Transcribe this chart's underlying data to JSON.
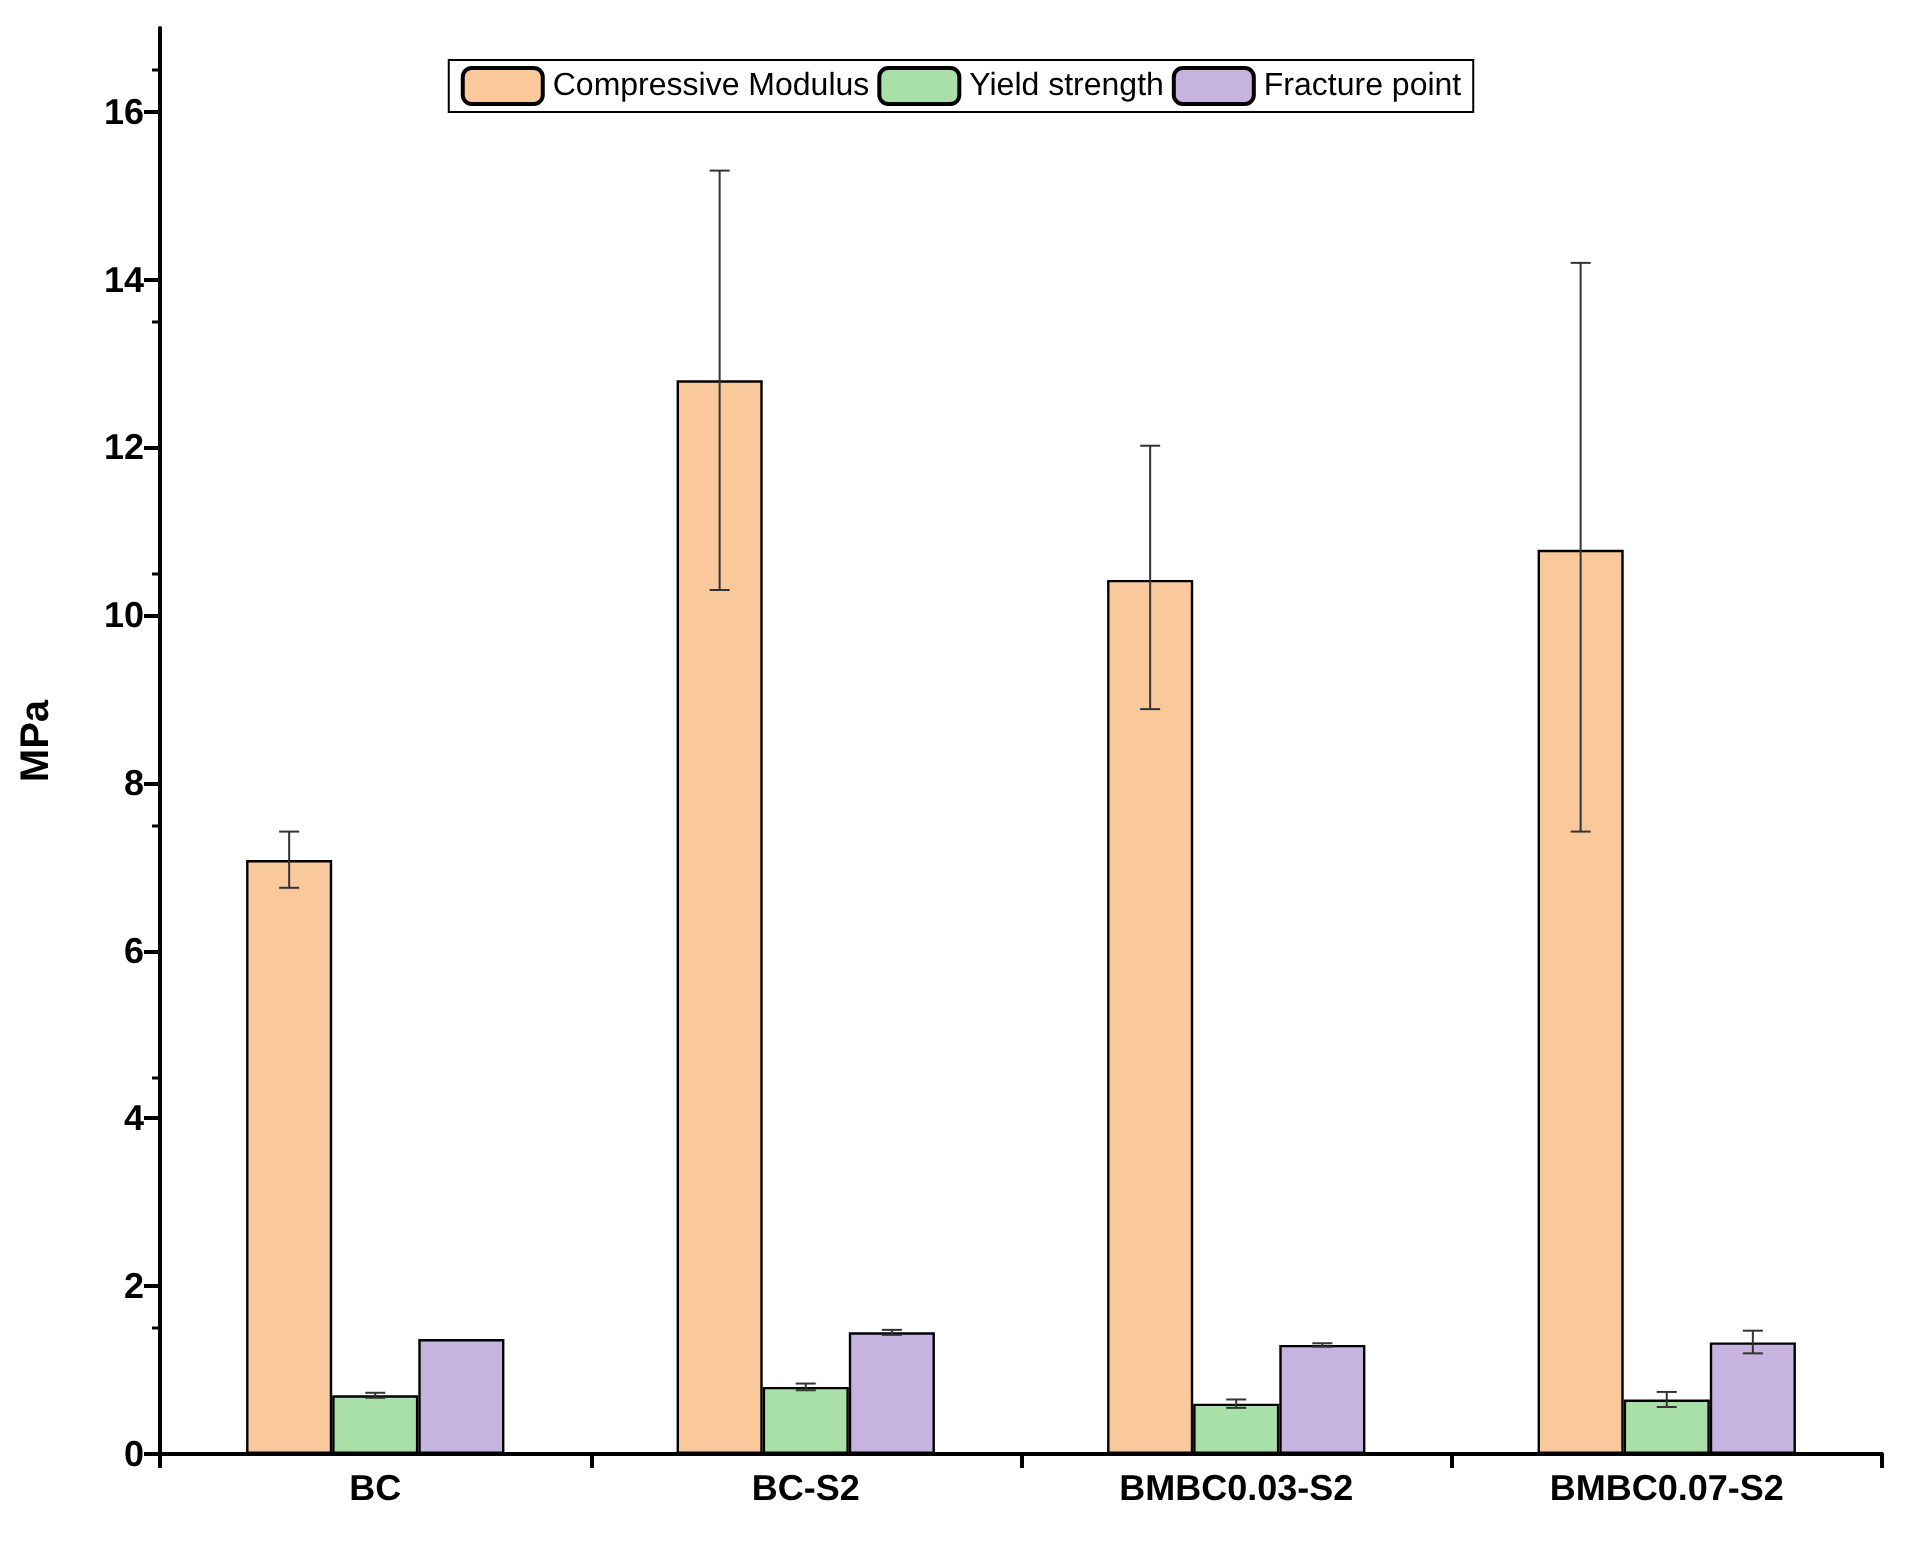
{
  "chart_data": {
    "type": "bar",
    "ylabel": "MPa",
    "categories": [
      "BC",
      "BC-S2",
      "BMBC0.03-S2",
      "BMBC0.07-S2"
    ],
    "series": [
      {
        "name": "Compressive Modulus",
        "color": "#f9c89b",
        "values": [
          7.08,
          12.8,
          10.42,
          10.78
        ],
        "errors": [
          [
            6.75,
            7.42
          ],
          [
            10.3,
            15.3
          ],
          [
            8.88,
            12.02
          ],
          [
            7.42,
            14.2
          ]
        ]
      },
      {
        "name": "Yield strength",
        "color": "#a8e0a8",
        "values": [
          0.7,
          0.8,
          0.6,
          0.65
        ],
        "errors": [
          0.03,
          0.04,
          0.05,
          0.09
        ]
      },
      {
        "name": "Fracture point",
        "color": "#c6b3e0",
        "values": [
          1.37,
          1.45,
          1.3,
          1.33
        ],
        "errors": [
          null,
          0.03,
          0.02,
          [
            1.2,
            1.47
          ]
        ]
      }
    ],
    "ylim": [
      0,
      17
    ],
    "yticks": [
      0,
      2,
      4,
      6,
      8,
      10,
      12,
      14,
      16
    ],
    "grid": false,
    "legend": "top"
  }
}
